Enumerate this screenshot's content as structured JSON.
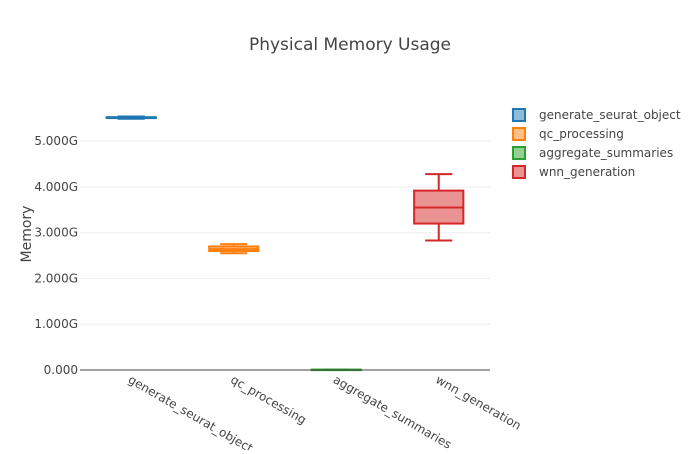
{
  "chart_data": {
    "type": "box",
    "title": "Physical Memory Usage",
    "xlabel": "",
    "ylabel": "Memory",
    "ylim": [
      0,
      5.9
    ],
    "y_ticks": [
      0,
      1,
      2,
      3,
      4,
      5
    ],
    "y_tick_labels": [
      "0.000",
      "1.000G",
      "2.000G",
      "3.000G",
      "4.000G",
      "5.000G"
    ],
    "grid": "horizontal",
    "legend_position": "top-right",
    "categories": [
      "generate_seurat_object",
      "qc_processing",
      "aggregate_summaries",
      "wnn_generation"
    ],
    "series": [
      {
        "name": "generate_seurat_object",
        "color": "#1f77b4",
        "fill": "rgba(31,119,180,0.5)",
        "min": 5.49,
        "q1": 5.505,
        "median": 5.515,
        "q3": 5.525,
        "max": 5.54
      },
      {
        "name": "qc_processing",
        "color": "#ff7f0e",
        "fill": "rgba(255,127,14,0.5)",
        "min": 2.55,
        "q1": 2.6,
        "median": 2.64,
        "q3": 2.7,
        "max": 2.75
      },
      {
        "name": "aggregate_summaries",
        "color": "#2ca02c",
        "fill": "rgba(44,160,44,0.5)",
        "min": 0.0,
        "q1": 0.002,
        "median": 0.005,
        "q3": 0.008,
        "max": 0.01
      },
      {
        "name": "wnn_generation",
        "color": "#d62728",
        "fill": "rgba(214,39,40,0.5)",
        "min": 2.83,
        "q1": 3.2,
        "median": 3.55,
        "q3": 3.92,
        "max": 4.28
      }
    ]
  }
}
